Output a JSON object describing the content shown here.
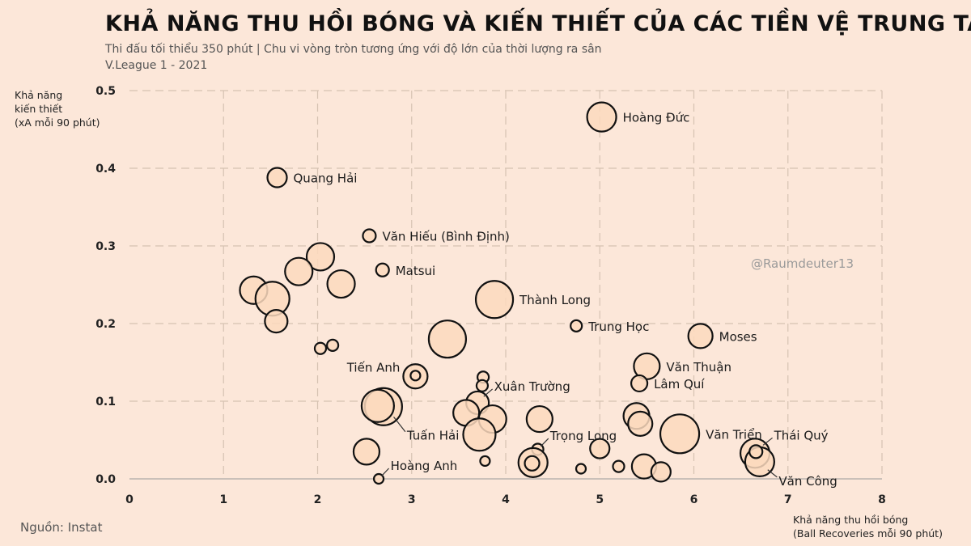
{
  "title": "KHẢ NĂNG THU HỒI BÓNG VÀ KIẾN THIẾT CỦA CÁC TIỀN VỆ TRUNG TÂM",
  "subtitle": "Thi đấu tối thiểu 350 phút | Chu vi vòng tròn tương ứng với độ lớn của thời lượng ra sân",
  "subtitle2": "V.League 1 - 2021",
  "watermark": "@Raumdeuter13",
  "source": "Nguồn: Instat",
  "colors": {
    "background": "#fce7d9",
    "bubble_fill": "#fcd9bd",
    "bubble_stroke": "#111111",
    "grid": "#d6c2b2"
  },
  "chart_data": {
    "type": "scatter",
    "title": "KHẢ NĂNG THU HỒI BÓNG VÀ KIẾN THIẾT CỦA CÁC TIỀN VỆ TRUNG TÂM",
    "xlabel": [
      "Khả năng thu hồi bóng",
      "(Ball Recoveries mỗi 90 phút)"
    ],
    "ylabel": [
      "Khả năng",
      "kiến thiết",
      "(xA mỗi 90 phút)"
    ],
    "xlim": [
      0,
      8
    ],
    "ylim": [
      0,
      0.5
    ],
    "xticks": [
      "0",
      "1",
      "2",
      "3",
      "4",
      "5",
      "6",
      "7",
      "8"
    ],
    "yticks": [
      "0.0",
      "0.1",
      "0.2",
      "0.3",
      "0.4",
      "0.5"
    ],
    "grid": true,
    "size_encoding": "minutes played",
    "points": [
      {
        "x": 5.02,
        "y": 0.466,
        "size": 1.8,
        "label": "Hoàng Đức",
        "label_side": "right"
      },
      {
        "x": 1.57,
        "y": 0.388,
        "size": 1.2,
        "label": "Quang Hải",
        "label_side": "right"
      },
      {
        "x": 2.55,
        "y": 0.313,
        "size": 0.8,
        "label": "Văn Hiếu (Bình Định)",
        "label_side": "right"
      },
      {
        "x": 2.69,
        "y": 0.269,
        "size": 0.8,
        "label": "Matsui",
        "label_side": "right"
      },
      {
        "x": 3.88,
        "y": 0.231,
        "size": 2.3,
        "label": "Thành Long",
        "label_side": "right"
      },
      {
        "x": 4.75,
        "y": 0.197,
        "size": 0.7,
        "label": "Trung Học",
        "label_side": "right"
      },
      {
        "x": 6.07,
        "y": 0.184,
        "size": 1.5,
        "label": "Moses",
        "label_side": "right"
      },
      {
        "x": 5.5,
        "y": 0.145,
        "size": 1.6,
        "label": "Văn Thuận",
        "label_side": "right"
      },
      {
        "x": 5.42,
        "y": 0.123,
        "size": 1.0,
        "label": "Lâm Quí",
        "label_side": "right"
      },
      {
        "x": 3.04,
        "y": 0.132,
        "size": 1.5,
        "label": "Tiến Anh",
        "label_side": "left"
      },
      {
        "x": 3.04,
        "y": 0.133,
        "size": 0.6,
        "label": "",
        "label_side": "none"
      },
      {
        "x": 3.7,
        "y": 0.098,
        "size": 1.4,
        "label": "Xuân Trường",
        "label_side": "callout-right"
      },
      {
        "x": 2.7,
        "y": 0.093,
        "size": 2.3,
        "label": "Tuấn Hải",
        "label_side": "callout-right"
      },
      {
        "x": 4.34,
        "y": 0.038,
        "size": 0.7,
        "label": "Trọng Long",
        "label_side": "callout-right"
      },
      {
        "x": 5.85,
        "y": 0.058,
        "size": 2.4,
        "label": "Văn Triển",
        "label_side": "right"
      },
      {
        "x": 6.65,
        "y": 0.033,
        "size": 1.8,
        "label": "Thái Quý",
        "label_side": "callout-right"
      },
      {
        "x": 6.7,
        "y": 0.022,
        "size": 1.8,
        "label": "Văn Công",
        "label_side": "callout-right"
      },
      {
        "x": 2.65,
        "y": 0.0,
        "size": 0.6,
        "label": "Hoàng Anh",
        "label_side": "callout-right"
      },
      {
        "x": 2.03,
        "y": 0.286,
        "size": 1.7,
        "label": "",
        "label_side": "none"
      },
      {
        "x": 1.8,
        "y": 0.267,
        "size": 1.7,
        "label": "",
        "label_side": "none"
      },
      {
        "x": 2.25,
        "y": 0.251,
        "size": 1.7,
        "label": "",
        "label_side": "none"
      },
      {
        "x": 1.32,
        "y": 0.243,
        "size": 1.7,
        "label": "",
        "label_side": "none"
      },
      {
        "x": 1.52,
        "y": 0.232,
        "size": 2.1,
        "label": "",
        "label_side": "none"
      },
      {
        "x": 1.56,
        "y": 0.203,
        "size": 1.4,
        "label": "",
        "label_side": "none"
      },
      {
        "x": 2.16,
        "y": 0.172,
        "size": 0.7,
        "label": "",
        "label_side": "none"
      },
      {
        "x": 2.03,
        "y": 0.168,
        "size": 0.7,
        "label": "",
        "label_side": "none"
      },
      {
        "x": 3.38,
        "y": 0.18,
        "size": 2.3,
        "label": "",
        "label_side": "none"
      },
      {
        "x": 3.76,
        "y": 0.131,
        "size": 0.7,
        "label": "",
        "label_side": "none"
      },
      {
        "x": 3.75,
        "y": 0.12,
        "size": 0.7,
        "label": "",
        "label_side": "none"
      },
      {
        "x": 2.64,
        "y": 0.094,
        "size": 2.0,
        "label": "",
        "label_side": "none"
      },
      {
        "x": 3.58,
        "y": 0.085,
        "size": 1.6,
        "label": "",
        "label_side": "none"
      },
      {
        "x": 3.86,
        "y": 0.077,
        "size": 1.7,
        "label": "",
        "label_side": "none"
      },
      {
        "x": 3.72,
        "y": 0.057,
        "size": 2.0,
        "label": "",
        "label_side": "none"
      },
      {
        "x": 4.36,
        "y": 0.077,
        "size": 1.6,
        "label": "",
        "label_side": "none"
      },
      {
        "x": 2.52,
        "y": 0.035,
        "size": 1.6,
        "label": "",
        "label_side": "none"
      },
      {
        "x": 3.78,
        "y": 0.023,
        "size": 0.6,
        "label": "",
        "label_side": "none"
      },
      {
        "x": 4.29,
        "y": 0.021,
        "size": 1.8,
        "label": "",
        "label_side": "none"
      },
      {
        "x": 4.28,
        "y": 0.02,
        "size": 0.9,
        "label": "",
        "label_side": "none"
      },
      {
        "x": 4.8,
        "y": 0.013,
        "size": 0.6,
        "label": "",
        "label_side": "none"
      },
      {
        "x": 5.0,
        "y": 0.039,
        "size": 1.2,
        "label": "",
        "label_side": "none"
      },
      {
        "x": 5.2,
        "y": 0.016,
        "size": 0.7,
        "label": "",
        "label_side": "none"
      },
      {
        "x": 5.39,
        "y": 0.081,
        "size": 1.6,
        "label": "",
        "label_side": "none"
      },
      {
        "x": 5.43,
        "y": 0.071,
        "size": 1.5,
        "label": "",
        "label_side": "none"
      },
      {
        "x": 5.47,
        "y": 0.016,
        "size": 1.5,
        "label": "",
        "label_side": "none"
      },
      {
        "x": 5.65,
        "y": 0.009,
        "size": 1.2,
        "label": "",
        "label_side": "none"
      },
      {
        "x": 6.66,
        "y": 0.035,
        "size": 0.8,
        "label": "",
        "label_side": "none"
      }
    ]
  }
}
